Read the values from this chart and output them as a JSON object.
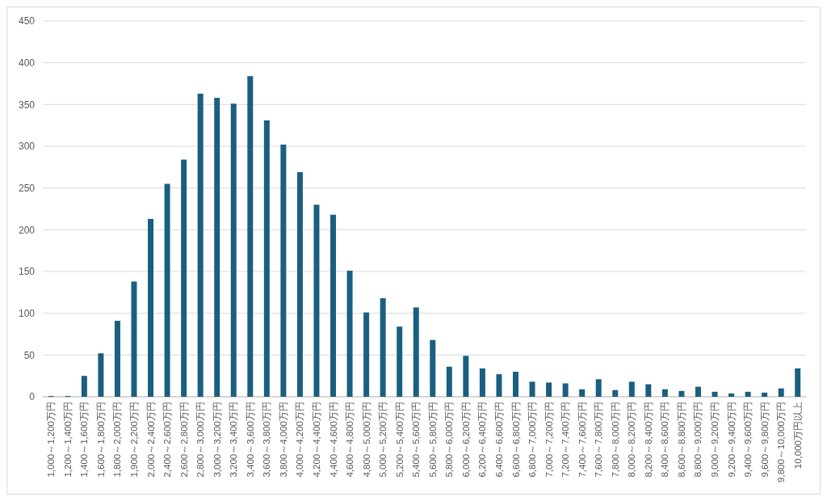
{
  "chart_data": {
    "type": "bar",
    "categories": [
      "1,000～1,200万円",
      "1,200～1,400万円",
      "1,400～1,600万円",
      "1,600～1,800万円",
      "1,800～2,000万円",
      "1,900～2,200万円",
      "2,000～2,400万円",
      "2,400～2,600万円",
      "2,600～2,800万円",
      "2,800～3,000万円",
      "3,000～3,200万円",
      "3,200～3,400万円",
      "3,400～3,600万円",
      "3,600～3,800万円",
      "3,800～4,000万円",
      "4,000～4,200万円",
      "4,200～4,400万円",
      "4,400～4,600万円",
      "4,600～4,800万円",
      "4,800～5,000万円",
      "5,000～5,200万円",
      "5,200～5,400万円",
      "5,400～5,600万円",
      "5,600～5,800万円",
      "5,800～6,000万円",
      "6,000～6,200万円",
      "6,200～6,400万円",
      "6,400～6,600万円",
      "6,600～6,800万円",
      "6,800～7,000万円",
      "7,000～7,200万円",
      "7,200～7,400万円",
      "7,400～7,600万円",
      "7,600～7,800万円",
      "7,800～8,000万円",
      "8,000～8,200万円",
      "8,200～8,400万円",
      "8,400～8,600万円",
      "8,600～8,800万円",
      "8,800～9,000万円",
      "9,000～9,200万円",
      "9,200～9,400万円",
      "9,400～9,600万円",
      "9,600～9,800万円",
      "9,800～10,000万円",
      "10,000万円以上"
    ],
    "values": [
      1,
      1,
      25,
      52,
      91,
      138,
      213,
      255,
      284,
      363,
      358,
      351,
      384,
      331,
      302,
      269,
      230,
      218,
      151,
      101,
      118,
      84,
      107,
      68,
      36,
      49,
      34,
      27,
      30,
      18,
      17,
      16,
      9,
      21,
      8,
      18,
      15,
      9,
      7,
      12,
      6,
      4,
      6,
      5,
      10,
      34
    ],
    "color": "#1a5f7f",
    "ylim": [
      0,
      450
    ],
    "yticks": [
      0,
      50,
      100,
      150,
      200,
      250,
      300,
      350,
      400,
      450
    ],
    "grid": "y"
  }
}
